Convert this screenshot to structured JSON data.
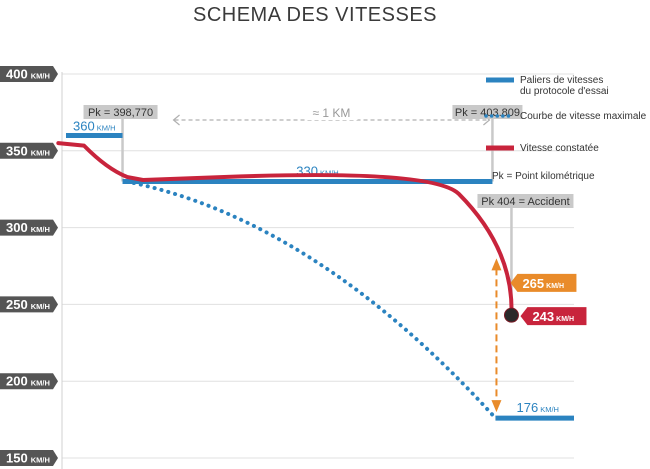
{
  "chart_data": {
    "type": "line",
    "title": "SCHEMA DES VITESSES",
    "y_unit": "KM/H",
    "ylim": [
      150,
      400
    ],
    "yticks": [
      150,
      200,
      250,
      300,
      350,
      400
    ],
    "xlim": [
      398.0,
      404.92
    ],
    "series": [
      {
        "name": "Paliers de vitesses du protocole d'essai",
        "color": "#2b83c0",
        "style": "steps",
        "segments": [
          {
            "x": [
              398.0,
              398.77
            ],
            "y": 360,
            "label": "360"
          },
          {
            "x": [
              398.77,
              403.809
            ],
            "y": 330,
            "label": "330"
          },
          {
            "x": [
              403.85,
              404.92
            ],
            "y": 176,
            "label": "176"
          }
        ]
      },
      {
        "name": "Courbe de vitesse maximale",
        "color": "#2b83c0",
        "style": "dotted",
        "x": [
          398.83,
          401.4,
          403.85
        ],
        "y": [
          330,
          305,
          176
        ]
      },
      {
        "name": "Vitesse constatée",
        "color": "#c8243c",
        "style": "solid",
        "x": [
          397.95,
          398.0,
          398.83,
          399.05,
          403.85,
          404.42,
          404.85,
          405.3
        ],
        "y": [
          355,
          354,
          333,
          331,
          331,
          332,
          309,
          243
        ]
      }
    ],
    "annotations": {
      "pk_labels": [
        {
          "text": "Pk = 398,770",
          "x": 398.77
        },
        {
          "text": "Pk = 403.809",
          "x": 403.809
        },
        {
          "text": "Pk 404 = Accident",
          "x": 404
        }
      ],
      "distance_label": "≈ 1 KM",
      "accident_speed": {
        "value": "243",
        "unit": "KM/H",
        "y": 243
      },
      "speed_gap": {
        "value": "265",
        "unit": "KM/H",
        "from": 176,
        "to": 280
      }
    },
    "legend": {
      "position": "top-right",
      "items": [
        {
          "label_lines": [
            "Paliers de vitesses",
            "du protocole d'essai"
          ],
          "style": "solid",
          "color": "#2b83c0"
        },
        {
          "label_lines": [
            "Courbe de vitesse maximale"
          ],
          "style": "dotted",
          "color": "#2b83c0"
        },
        {
          "label_lines": [
            "Vitesse constatée"
          ],
          "style": "solid",
          "color": "#c8243c"
        },
        {
          "label_lines": [
            "Pk = Point kilométrique"
          ],
          "style": "none",
          "color": ""
        }
      ]
    },
    "grid": true
  },
  "colors": {
    "protocol_blue": "#2b83c0",
    "observed_red": "#c8243c",
    "gap_orange": "#e98b2a",
    "label_gray": "#c9c9c9",
    "tick_gray": "#555555",
    "grid": "#e0e0e0"
  }
}
